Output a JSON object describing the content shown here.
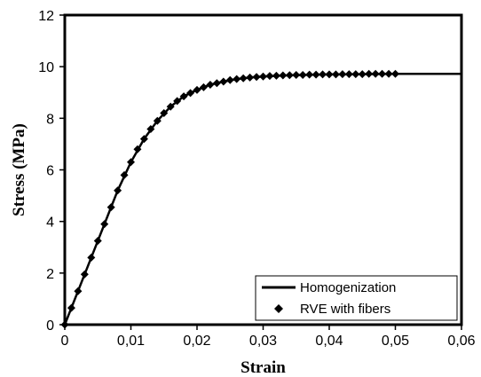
{
  "chart_data": {
    "type": "line",
    "xlabel": "Strain",
    "ylabel": "Stress (MPa)",
    "xlim": [
      0,
      0.06
    ],
    "ylim": [
      0,
      12
    ],
    "xticks": [
      "0",
      "0,01",
      "0,02",
      "0,03",
      "0,04",
      "0,05",
      "0,06"
    ],
    "yticks": [
      "0",
      "2",
      "4",
      "6",
      "8",
      "10",
      "12"
    ],
    "grid": false,
    "legend_position": "bottom-right",
    "series": [
      {
        "name": "Homogenization",
        "style": "solid-line",
        "color": "#000000",
        "x": [
          0,
          0.002,
          0.004,
          0.006,
          0.008,
          0.01,
          0.012,
          0.014,
          0.016,
          0.018,
          0.02,
          0.022,
          0.024,
          0.026,
          0.028,
          0.03,
          0.033,
          0.036,
          0.04,
          0.045,
          0.05,
          0.055,
          0.06
        ],
        "y": [
          0,
          1.3,
          2.6,
          3.9,
          5.2,
          6.3,
          7.2,
          7.9,
          8.45,
          8.85,
          9.1,
          9.3,
          9.42,
          9.52,
          9.58,
          9.62,
          9.66,
          9.68,
          9.7,
          9.71,
          9.72,
          9.72,
          9.72
        ]
      },
      {
        "name": "RVE with fibers",
        "style": "diamond-markers",
        "color": "#000000",
        "x": [
          0,
          0.001,
          0.002,
          0.003,
          0.004,
          0.005,
          0.006,
          0.007,
          0.008,
          0.009,
          0.01,
          0.011,
          0.012,
          0.013,
          0.014,
          0.015,
          0.016,
          0.017,
          0.018,
          0.019,
          0.02,
          0.021,
          0.022,
          0.023,
          0.024,
          0.025,
          0.026,
          0.027,
          0.028,
          0.029,
          0.03,
          0.031,
          0.032,
          0.033,
          0.034,
          0.035,
          0.036,
          0.037,
          0.038,
          0.039,
          0.04,
          0.041,
          0.042,
          0.043,
          0.044,
          0.045,
          0.046,
          0.047,
          0.048,
          0.049,
          0.05
        ],
        "y": [
          0,
          0.65,
          1.3,
          1.95,
          2.6,
          3.25,
          3.9,
          4.55,
          5.2,
          5.8,
          6.3,
          6.8,
          7.2,
          7.58,
          7.9,
          8.2,
          8.45,
          8.67,
          8.85,
          8.98,
          9.1,
          9.2,
          9.3,
          9.36,
          9.42,
          9.48,
          9.52,
          9.55,
          9.58,
          9.6,
          9.62,
          9.64,
          9.65,
          9.66,
          9.67,
          9.68,
          9.68,
          9.69,
          9.69,
          9.7,
          9.7,
          9.7,
          9.71,
          9.71,
          9.71,
          9.71,
          9.72,
          9.72,
          9.72,
          9.72,
          9.72
        ]
      }
    ]
  }
}
